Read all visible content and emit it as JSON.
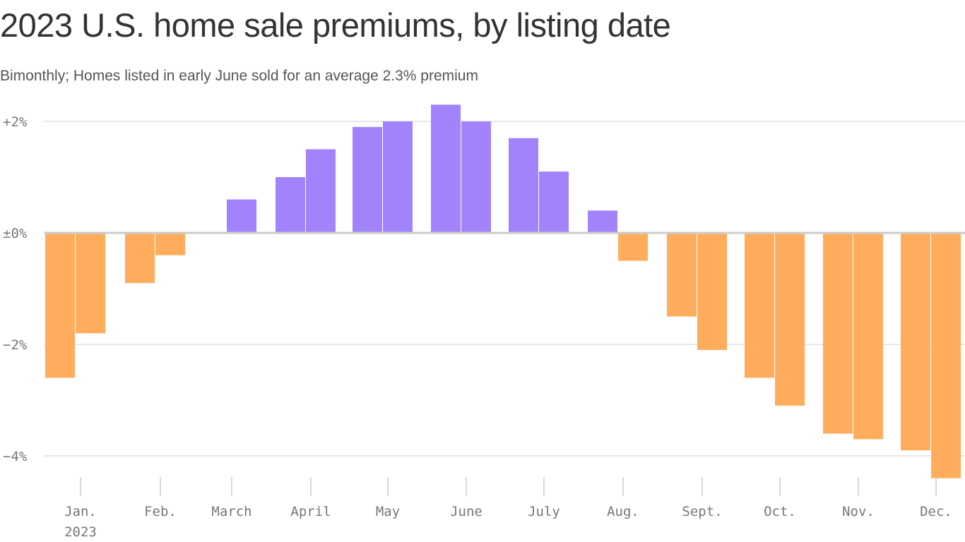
{
  "chart_data": {
    "type": "bar",
    "title": "2023 U.S. home sale premiums, by listing date",
    "subtitle": "Bimonthly; Homes listed in early June sold for an average 2.3% premium",
    "x_ticks": [
      "Jan.",
      "Feb.",
      "March",
      "April",
      "May",
      "June",
      "July",
      "Aug.",
      "Sept.",
      "Oct.",
      "Nov.",
      "Dec."
    ],
    "x_year_label": "2023",
    "y_ticks": [
      {
        "value": 2,
        "label": "+2%"
      },
      {
        "value": 0,
        "label": "±0%"
      },
      {
        "value": -2,
        "label": "−2%"
      },
      {
        "value": -4,
        "label": "−4%"
      }
    ],
    "ylim": [
      -4.4,
      2.3
    ],
    "grid": true,
    "categories": [
      "Jan. 1",
      "Jan. 15",
      "Feb. 1",
      "Feb. 15",
      "Mar. 1",
      "Mar. 15",
      "Apr. 1",
      "Apr. 15",
      "May 1",
      "May 15",
      "Jun. 1",
      "Jun. 15",
      "Jul. 1",
      "Jul. 15",
      "Aug. 1",
      "Aug. 15",
      "Sep. 1",
      "Sep. 15",
      "Oct. 1",
      "Oct. 15",
      "Nov. 1",
      "Nov. 15",
      "Dec. 1",
      "Dec. 15"
    ],
    "values": [
      -2.6,
      -1.8,
      -0.9,
      -0.4,
      null,
      0.6,
      1.0,
      1.5,
      1.9,
      2.0,
      2.3,
      2.0,
      1.7,
      1.1,
      0.4,
      -0.5,
      -1.5,
      -2.1,
      -2.6,
      -3.1,
      -3.6,
      -3.7,
      -3.9,
      -4.4
    ],
    "colors": {
      "positive": "#A283FC",
      "negative": "#FFAD5C",
      "grid": "#e0e0e0",
      "zero_line": "#cccccc"
    }
  }
}
